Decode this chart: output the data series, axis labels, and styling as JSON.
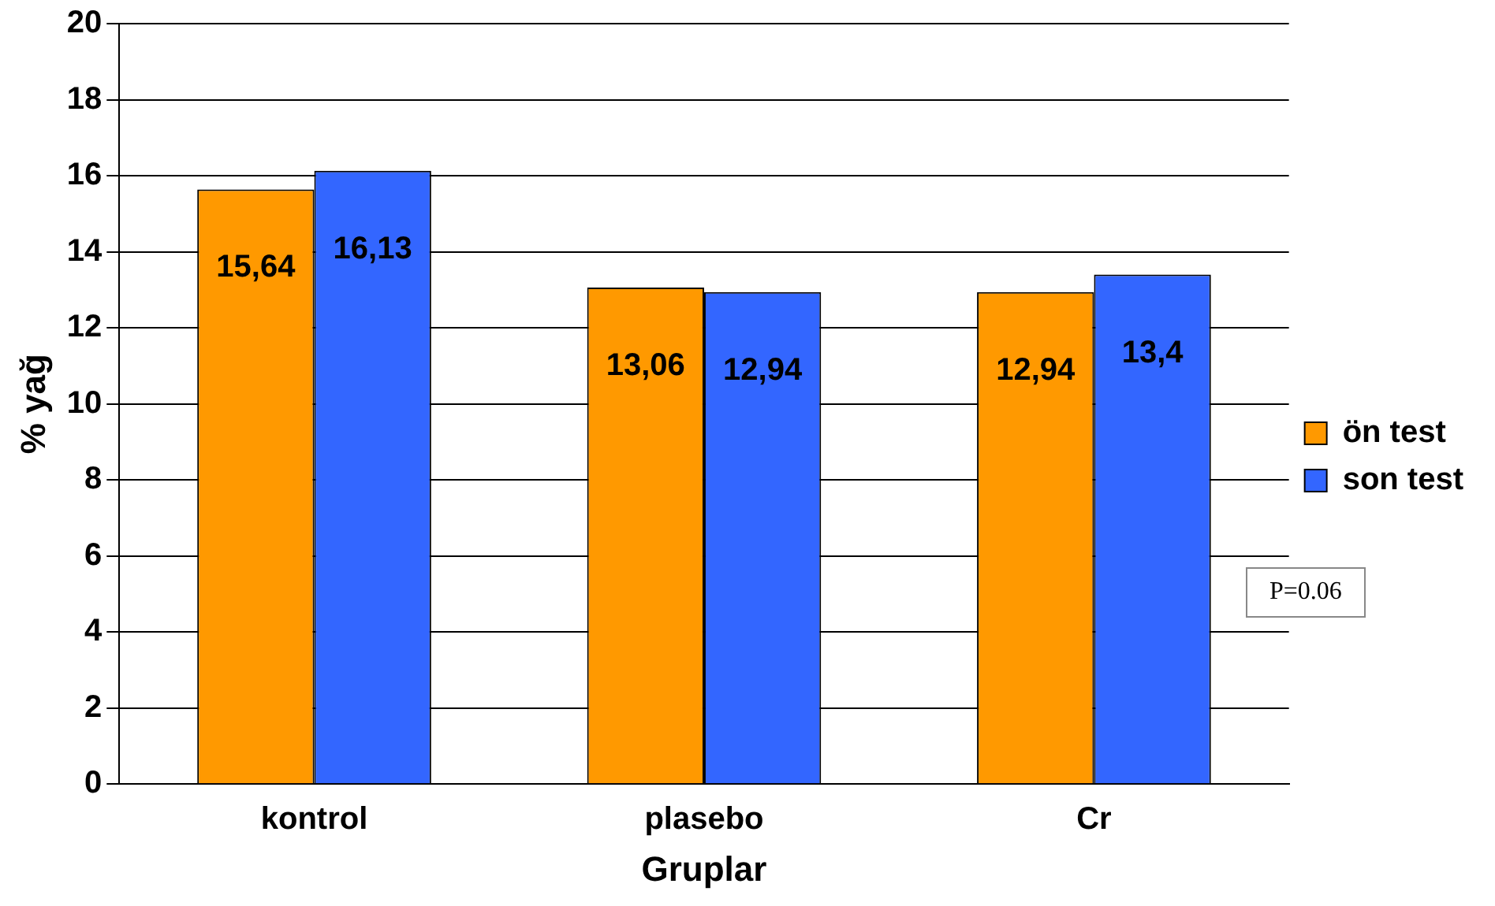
{
  "chart_data": {
    "type": "bar",
    "xlabel": "Gruplar",
    "ylabel": "% yağ",
    "categories": [
      "kontrol",
      "plasebo",
      "Cr"
    ],
    "series": [
      {
        "name": "ön test",
        "color": "#ff9900",
        "values": [
          15.64,
          13.06,
          12.94
        ],
        "value_labels": [
          "15,64",
          "13,06",
          "12,94"
        ]
      },
      {
        "name": "son test",
        "color": "#3366ff",
        "values": [
          16.13,
          12.94,
          13.4
        ],
        "value_labels": [
          "16,13",
          "12,94",
          "13,4"
        ]
      }
    ],
    "ylim": [
      0,
      20
    ],
    "yticks": [
      0,
      2,
      4,
      6,
      8,
      10,
      12,
      14,
      16,
      18,
      20
    ],
    "grid": "y",
    "legend": "right",
    "annotations": [
      "P=0.06"
    ]
  }
}
